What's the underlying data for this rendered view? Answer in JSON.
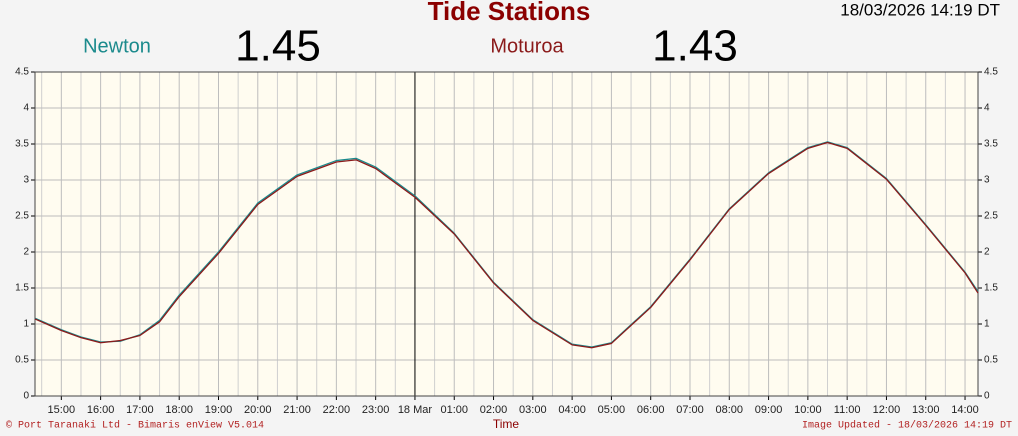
{
  "chart_data": {
    "type": "line",
    "title": "Tide Stations",
    "timestamp": "18/03/2026 14:19 DT",
    "x_label": "Time",
    "footer_left": "© Port Taranaki Ltd - Bimaris enView V5.014",
    "footer_right": "Image Updated - 18/03/2026 14:19 DT",
    "x": [
      14.33,
      15,
      15.5,
      16,
      16.5,
      17,
      17.5,
      18,
      19,
      20,
      21,
      22,
      22.5,
      23,
      24,
      25,
      26,
      27,
      28,
      28.5,
      29,
      30,
      31,
      32,
      33,
      34,
      34.5,
      35,
      36,
      37,
      38,
      38.33
    ],
    "series": [
      {
        "name": "Newton",
        "color": "#1b8a8c",
        "current": 1.45,
        "values": [
          1.08,
          0.92,
          0.82,
          0.75,
          0.76,
          0.85,
          1.05,
          1.4,
          2.0,
          2.68,
          3.07,
          3.27,
          3.3,
          3.18,
          2.78,
          2.26,
          1.58,
          1.06,
          0.72,
          0.68,
          0.74,
          1.24,
          1.9,
          2.6,
          3.1,
          3.45,
          3.53,
          3.45,
          3.02,
          2.38,
          1.72,
          1.45
        ]
      },
      {
        "name": "Moturoa",
        "color": "#8b1a1a",
        "current": 1.43,
        "values": [
          1.07,
          0.91,
          0.81,
          0.74,
          0.77,
          0.84,
          1.03,
          1.38,
          1.98,
          2.66,
          3.05,
          3.25,
          3.28,
          3.16,
          2.76,
          2.25,
          1.57,
          1.05,
          0.71,
          0.67,
          0.73,
          1.23,
          1.89,
          2.59,
          3.09,
          3.44,
          3.52,
          3.44,
          3.01,
          2.37,
          1.71,
          1.43
        ]
      }
    ],
    "xlim": [
      14.33,
      38.33
    ],
    "xticks": [
      {
        "value": 15,
        "label": "15:00"
      },
      {
        "value": 16,
        "label": "16:00"
      },
      {
        "value": 17,
        "label": "17:00"
      },
      {
        "value": 18,
        "label": "18:00"
      },
      {
        "value": 19,
        "label": "19:00"
      },
      {
        "value": 20,
        "label": "20:00"
      },
      {
        "value": 21,
        "label": "21:00"
      },
      {
        "value": 22,
        "label": "22:00"
      },
      {
        "value": 23,
        "label": "23:00"
      },
      {
        "value": 24,
        "label": "18 Mar"
      },
      {
        "value": 25,
        "label": "01:00"
      },
      {
        "value": 26,
        "label": "02:00"
      },
      {
        "value": 27,
        "label": "03:00"
      },
      {
        "value": 28,
        "label": "04:00"
      },
      {
        "value": 29,
        "label": "05:00"
      },
      {
        "value": 30,
        "label": "06:00"
      },
      {
        "value": 31,
        "label": "07:00"
      },
      {
        "value": 32,
        "label": "08:00"
      },
      {
        "value": 33,
        "label": "09:00"
      },
      {
        "value": 34,
        "label": "10:00"
      },
      {
        "value": 35,
        "label": "11:00"
      },
      {
        "value": 36,
        "label": "12:00"
      },
      {
        "value": 37,
        "label": "13:00"
      },
      {
        "value": 38,
        "label": "14:00"
      }
    ],
    "ylim": [
      0,
      4.5
    ],
    "yticks": [
      0,
      0.5,
      1,
      1.5,
      2,
      2.5,
      3,
      3.5,
      4,
      4.5
    ],
    "grid": true
  }
}
